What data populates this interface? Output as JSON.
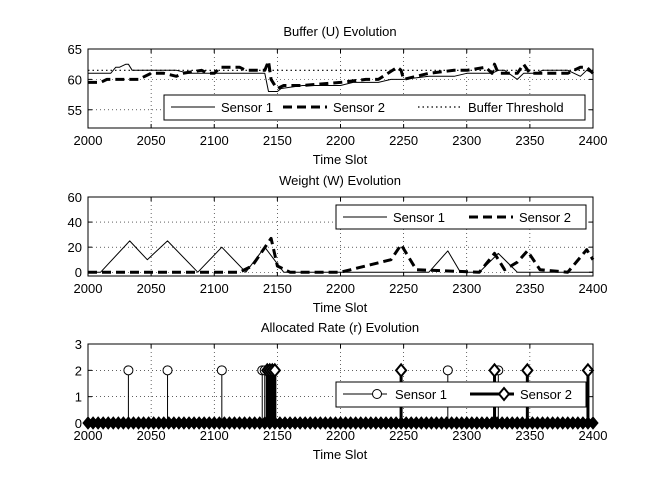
{
  "chart_data": [
    {
      "type": "line",
      "title": "Buffer (U) Evolution",
      "xlabel": "Time Slot",
      "ylabel": "",
      "xlim": [
        2000,
        2400
      ],
      "ylim": [
        52,
        65
      ],
      "xticks": [
        2000,
        2050,
        2100,
        2150,
        2200,
        2250,
        2300,
        2350,
        2400
      ],
      "yticks": [
        55,
        60,
        65
      ],
      "grid": true,
      "legend_position": "bottom-right",
      "series": [
        {
          "name": "Sensor 1",
          "style": "solid",
          "x": [
            2000,
            2018,
            2022,
            2025,
            2030,
            2032,
            2035,
            2040,
            2050,
            2070,
            2080,
            2100,
            2110,
            2120,
            2130,
            2140,
            2143,
            2146,
            2150,
            2153,
            2170,
            2200,
            2210,
            2230,
            2240,
            2250,
            2270,
            2275,
            2290,
            2300,
            2310,
            2320,
            2325,
            2330,
            2340,
            2345,
            2355,
            2360,
            2380,
            2390,
            2395,
            2400
          ],
          "y": [
            61,
            61,
            62,
            62,
            62.5,
            62.5,
            61.5,
            61.5,
            61.5,
            61.5,
            61,
            61,
            61,
            61,
            61,
            61,
            58,
            58,
            58,
            58.5,
            59,
            59,
            59.5,
            59.5,
            60,
            60,
            60.5,
            60.5,
            60.5,
            61,
            61,
            61,
            61.5,
            61.5,
            60,
            61,
            61,
            61.5,
            61.5,
            60.5,
            61.5,
            61
          ]
        },
        {
          "name": "Sensor 2",
          "style": "dashed",
          "x": [
            2000,
            2010,
            2015,
            2030,
            2040,
            2050,
            2060,
            2070,
            2075,
            2090,
            2095,
            2100,
            2105,
            2120,
            2125,
            2140,
            2143,
            2145,
            2148,
            2150,
            2155,
            2170,
            2200,
            2220,
            2230,
            2245,
            2248,
            2250,
            2270,
            2290,
            2300,
            2315,
            2320,
            2322,
            2325,
            2335,
            2340,
            2345,
            2350,
            2380,
            2390,
            2395,
            2400
          ],
          "y": [
            59.5,
            59.5,
            60,
            60,
            60,
            61,
            61,
            60.5,
            61,
            61.5,
            61,
            61,
            62,
            62,
            61.5,
            61.5,
            63,
            60,
            59,
            58.5,
            59,
            59,
            59.5,
            60,
            60,
            62,
            61.5,
            60,
            61,
            61.5,
            61.5,
            62,
            61,
            62.5,
            61,
            61,
            61,
            62.5,
            61,
            61,
            62,
            62,
            61
          ]
        },
        {
          "name": "Buffer Threshold",
          "style": "dotted",
          "x": [
            2000,
            2400
          ],
          "y": [
            61.5,
            61.5
          ]
        }
      ]
    },
    {
      "type": "line",
      "title": "Weight (W) Evolution",
      "xlabel": "Time Slot",
      "ylabel": "",
      "xlim": [
        2000,
        2400
      ],
      "ylim": [
        -3,
        60
      ],
      "xticks": [
        2000,
        2050,
        2100,
        2150,
        2200,
        2250,
        2300,
        2350,
        2400
      ],
      "yticks": [
        0,
        20,
        40,
        60
      ],
      "grid": true,
      "legend_position": "top-right",
      "series": [
        {
          "name": "Sensor 1",
          "style": "solid",
          "x": [
            2000,
            2010,
            2033,
            2047,
            2063,
            2087,
            2106,
            2125,
            2140,
            2155,
            2270,
            2285,
            2295,
            2310,
            2325,
            2340,
            2400
          ],
          "y": [
            0,
            0,
            25,
            10,
            25,
            0,
            20,
            0,
            20,
            0,
            0,
            17,
            0,
            0,
            15,
            0,
            0
          ]
        },
        {
          "name": "Sensor 2",
          "style": "dashed",
          "x": [
            2000,
            2120,
            2130,
            2145,
            2150,
            2160,
            2200,
            2240,
            2248,
            2260,
            2310,
            2322,
            2330,
            2340,
            2348,
            2358,
            2380,
            2395,
            2400
          ],
          "y": [
            0,
            0,
            5,
            27,
            5,
            0,
            0,
            10,
            22,
            2,
            0,
            15,
            2,
            8,
            17,
            2,
            0,
            18,
            10
          ]
        }
      ]
    },
    {
      "type": "stem",
      "title": "Allocated Rate (r) Evolution",
      "xlabel": "Time Slot",
      "ylabel": "",
      "xlim": [
        2000,
        2400
      ],
      "ylim": [
        0,
        3
      ],
      "xticks": [
        2000,
        2050,
        2100,
        2150,
        2200,
        2250,
        2300,
        2350,
        2400
      ],
      "yticks": [
        0,
        1,
        2,
        3
      ],
      "grid": true,
      "legend_position": "bottom-right",
      "series": [
        {
          "name": "Sensor 1",
          "marker": "circle",
          "x": [
            2032,
            2063,
            2106,
            2138,
            2140,
            2285,
            2325
          ],
          "y": [
            2,
            2,
            2,
            2,
            2,
            2,
            2
          ]
        },
        {
          "name": "Sensor 2",
          "marker": "diamond",
          "x": [
            2142,
            2144,
            2146,
            2148,
            2248,
            2322,
            2348,
            2396
          ],
          "y": [
            2,
            2,
            2,
            2,
            2,
            2,
            2,
            2
          ]
        }
      ]
    }
  ]
}
